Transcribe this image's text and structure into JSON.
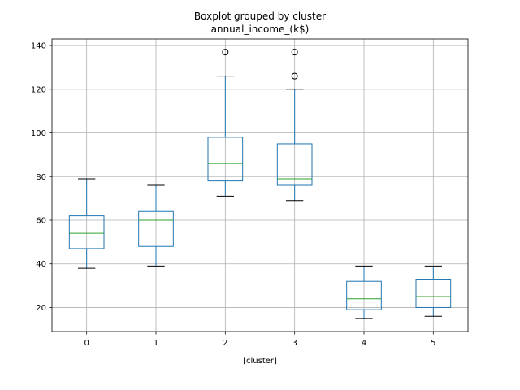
{
  "chart_data": {
    "type": "boxplot",
    "suptitle": "Boxplot grouped by cluster",
    "title": "annual_income_(k$)",
    "xlabel": "[cluster]",
    "ylabel": "",
    "categories": [
      "0",
      "1",
      "2",
      "3",
      "4",
      "5"
    ],
    "ylim": [
      9,
      143
    ],
    "yticks": [
      20,
      40,
      60,
      80,
      100,
      120,
      140
    ],
    "grid": true,
    "colors": {
      "box": "#1f77b4",
      "median": "#2ca02c",
      "whisker": "#1f77b4",
      "cap": "#000000",
      "flier": "#000000",
      "grid": "#b0b0b0"
    },
    "boxes": [
      {
        "category": "0",
        "whisker_low": 38,
        "q1": 47,
        "median": 54,
        "q3": 62,
        "whisker_high": 79,
        "fliers": []
      },
      {
        "category": "1",
        "whisker_low": 39,
        "q1": 48,
        "median": 60,
        "q3": 64,
        "whisker_high": 76,
        "fliers": []
      },
      {
        "category": "2",
        "whisker_low": 71,
        "q1": 78,
        "median": 86,
        "q3": 98,
        "whisker_high": 126,
        "fliers": [
          137
        ]
      },
      {
        "category": "3",
        "whisker_low": 69,
        "q1": 76,
        "median": 79,
        "q3": 95,
        "whisker_high": 120,
        "fliers": [
          126,
          137
        ]
      },
      {
        "category": "4",
        "whisker_low": 15,
        "q1": 19,
        "median": 24,
        "q3": 32,
        "whisker_high": 39,
        "fliers": []
      },
      {
        "category": "5",
        "whisker_low": 16,
        "q1": 20,
        "median": 25,
        "q3": 33,
        "whisker_high": 39,
        "fliers": []
      }
    ]
  }
}
